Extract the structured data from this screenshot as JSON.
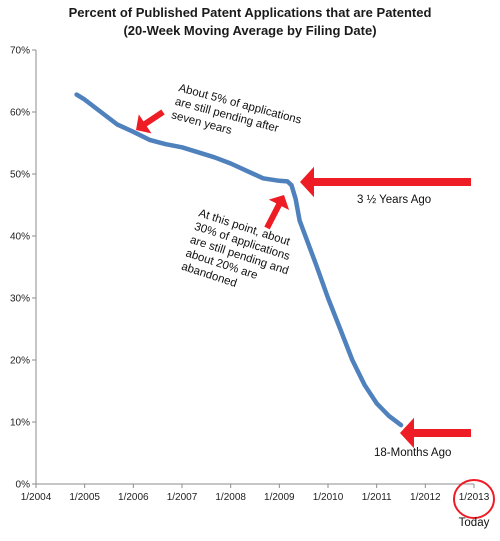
{
  "chart_data": {
    "type": "line",
    "title": "Percent of Published Patent Applications that are Patented",
    "subtitle": "(20-Week Moving Average by Filing Date)",
    "xlabel": "",
    "ylabel": "",
    "x_tick_labels": [
      "1/2004",
      "1/2005",
      "1/2006",
      "1/2007",
      "1/2008",
      "1/2009",
      "1/2010",
      "1/2011",
      "1/2012",
      "1/2013"
    ],
    "y_tick_labels": [
      "0%",
      "10%",
      "20%",
      "30%",
      "40%",
      "50%",
      "60%",
      "70%"
    ],
    "xlim": [
      "2004-01",
      "2013-01"
    ],
    "ylim": [
      0,
      70
    ],
    "grid": false,
    "series": [
      {
        "color": "#4f81bd",
        "x": [
          "2004-11",
          "2005-01",
          "2005-05",
          "2005-09",
          "2006-01",
          "2006-05",
          "2006-09",
          "2007-01",
          "2007-05",
          "2007-09",
          "2008-01",
          "2008-05",
          "2008-09",
          "2009-01",
          "2009-03",
          "2009-04",
          "2009-05",
          "2009-06",
          "2009-08",
          "2009-10",
          "2010-01",
          "2010-04",
          "2010-07",
          "2010-10",
          "2011-01",
          "2011-04",
          "2011-07"
        ],
        "values": [
          62.8,
          62.0,
          60.0,
          58.0,
          56.8,
          55.5,
          54.8,
          54.3,
          53.5,
          52.7,
          51.7,
          50.5,
          49.3,
          48.9,
          48.8,
          48.2,
          46.0,
          42.5,
          39.0,
          35.5,
          30.0,
          25.0,
          20.0,
          16.0,
          13.0,
          11.0,
          9.5
        ]
      }
    ],
    "annotations": [
      {
        "lines": [
          "About 5% of applications",
          "are still pending after",
          "seven years"
        ]
      },
      {
        "lines": [
          "At this point, about",
          "30% of applications",
          "are still pending and",
          "about 20% are",
          "abandoned"
        ]
      },
      {
        "text": "3 ½ Years Ago"
      },
      {
        "text": "18-Months Ago"
      },
      {
        "text": "Today"
      }
    ],
    "accent_color": "#ee1c25"
  }
}
